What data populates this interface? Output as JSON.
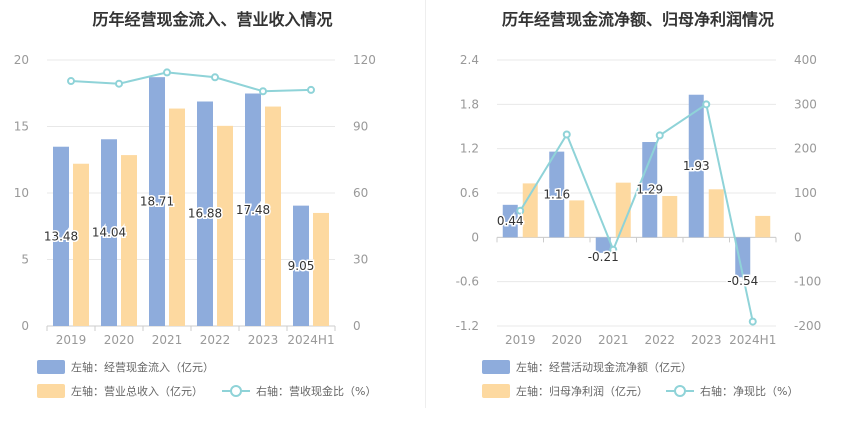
{
  "colors": {
    "bar_blue": "#8eacdc",
    "bar_orange": "#fdd9a0",
    "line_cyan": "#8fd3d8",
    "axis_text": "#999999",
    "grid": "#e8e8e8",
    "label_text": "#333333"
  },
  "left_panel": {
    "title": "历年经营现金流入、营业收入情况",
    "legend": {
      "s1": "左轴：经营现金流入（亿元）",
      "s2": "左轴：营业总收入（亿元）",
      "s3": "右轴：营收现金比（%）"
    }
  },
  "right_panel": {
    "title": "历年经营现金流净额、归母净利润情况",
    "legend": {
      "s1": "左轴：经营活动现金流净额（亿元）",
      "s2": "左轴：归母净利润（亿元）",
      "s3": "右轴：净现比（%）"
    }
  },
  "chart_data": [
    {
      "type": "bar",
      "title": "历年经营现金流入、营业收入情况",
      "categories": [
        "2019",
        "2020",
        "2021",
        "2022",
        "2023",
        "2024H1"
      ],
      "y_left": {
        "min": 0,
        "max": 20,
        "ticks": [
          0,
          5,
          10,
          15,
          20
        ]
      },
      "y_right": {
        "min": 0,
        "max": 120,
        "ticks": [
          0,
          30,
          60,
          90,
          120
        ]
      },
      "grid": true,
      "legend_position": "bottom-left",
      "series": [
        {
          "name": "左轴：经营现金流入（亿元）",
          "type": "bar",
          "axis": "left",
          "color": "#8eacdc",
          "values": [
            13.48,
            14.04,
            18.71,
            16.88,
            17.48,
            9.05
          ],
          "labels": [
            "13.48",
            "14.04",
            "18.71",
            "16.88",
            "17.48",
            "9.05"
          ]
        },
        {
          "name": "左轴：营业总收入（亿元）",
          "type": "bar",
          "axis": "left",
          "color": "#fdd9a0",
          "values": [
            12.2,
            12.85,
            16.35,
            15.05,
            16.5,
            8.5
          ]
        },
        {
          "name": "右轴：营收现金比（%）",
          "type": "line",
          "axis": "right",
          "color": "#8fd3d8",
          "values": [
            110.5,
            109.3,
            114.4,
            112.2,
            105.9,
            106.5
          ]
        }
      ]
    },
    {
      "type": "bar",
      "title": "历年经营现金流净额、归母净利润情况",
      "categories": [
        "2019",
        "2020",
        "2021",
        "2022",
        "2023",
        "2024H1"
      ],
      "y_left": {
        "min": -1.2,
        "max": 2.4,
        "ticks": [
          -1.2,
          -0.6,
          0,
          0.6,
          1.2,
          1.8,
          2.4
        ]
      },
      "y_right": {
        "min": -200,
        "max": 400,
        "ticks": [
          -200,
          -100,
          0,
          100,
          200,
          300,
          400
        ]
      },
      "grid": true,
      "legend_position": "bottom-left",
      "series": [
        {
          "name": "左轴：经营活动现金流净额（亿元）",
          "type": "bar",
          "axis": "left",
          "color": "#8eacdc",
          "values": [
            0.44,
            1.16,
            -0.21,
            1.29,
            1.93,
            -0.54
          ],
          "labels": [
            "0.44",
            "1.16",
            "-0.21",
            "1.29",
            "1.93",
            "-0.54"
          ]
        },
        {
          "name": "左轴：归母净利润（亿元）",
          "type": "bar",
          "axis": "left",
          "color": "#fdd9a0",
          "values": [
            0.73,
            0.5,
            0.74,
            0.56,
            0.65,
            0.29
          ]
        },
        {
          "name": "右轴：净现比（%）",
          "type": "line",
          "axis": "right",
          "color": "#8fd3d8",
          "values": [
            60,
            232,
            -28,
            230,
            300,
            -190
          ]
        }
      ]
    }
  ]
}
